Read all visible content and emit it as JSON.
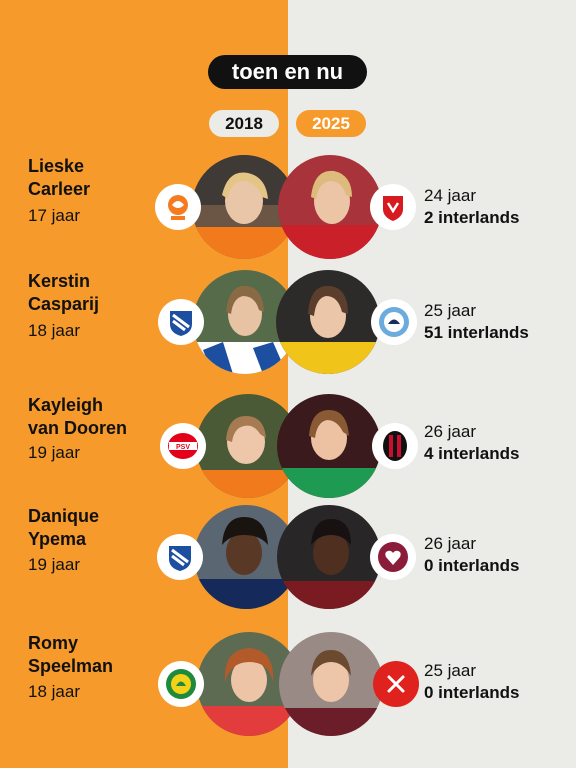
{
  "header": {
    "title": "toen en nu",
    "year_left": "2018",
    "year_right": "2025"
  },
  "colors": {
    "orange": "#f79a2c",
    "light_bg": "#ebebe7",
    "dark": "#111111",
    "red_x": "#e0221e"
  },
  "players": [
    {
      "name_line1": "Lieske",
      "name_line2": "Carleer",
      "age_2018": "17 jaar",
      "club_2018_icon": "knvb-lion-icon",
      "club_2025_icon": "fc-twente-icon",
      "age_2025": "24 jaar",
      "caps_2025": "2 interlands"
    },
    {
      "name_line1": "Kerstin",
      "name_line2": "Casparij",
      "age_2018": "18 jaar",
      "club_2018_icon": "heerenveen-icon",
      "club_2025_icon": "manchester-city-icon",
      "age_2025": "25 jaar",
      "caps_2025": "51 interlands"
    },
    {
      "name_line1": "Kayleigh",
      "name_line2": "van Dooren",
      "age_2018": "19 jaar",
      "club_2018_icon": "psv-icon",
      "club_2025_icon": "ac-milan-icon",
      "age_2025": "26 jaar",
      "caps_2025": "4 interlands"
    },
    {
      "name_line1": "Danique",
      "name_line2": "Ypema",
      "age_2018": "19 jaar",
      "club_2018_icon": "heerenveen-icon",
      "club_2025_icon": "hearts-icon",
      "age_2025": "26 jaar",
      "caps_2025": "0 interlands"
    },
    {
      "name_line1": "Romy",
      "name_line2": "Speelman",
      "age_2018": "18 jaar",
      "club_2018_icon": "ado-den-haag-icon",
      "club_2025_icon": "close-x-icon",
      "age_2025": "25 jaar",
      "caps_2025": "0 interlands"
    }
  ]
}
